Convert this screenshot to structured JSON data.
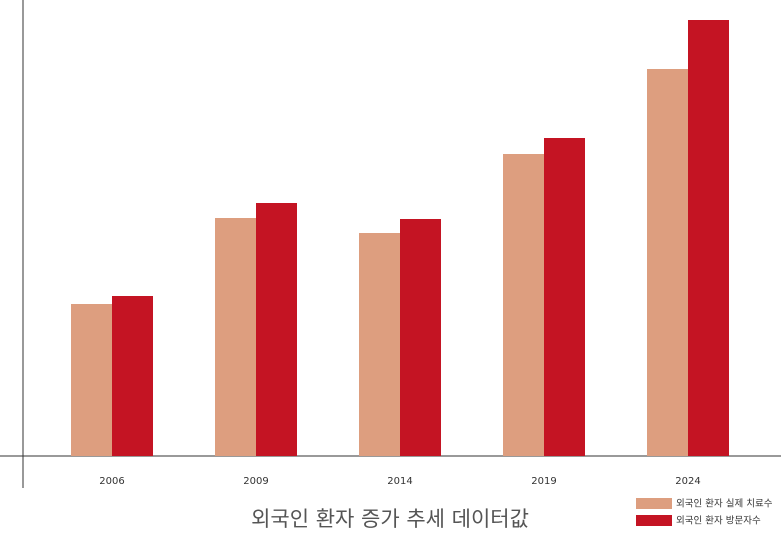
{
  "chart_data": {
    "type": "bar",
    "title": "외국인 환자 증가 추세 데이터값",
    "categories": [
      "2006",
      "2009",
      "2014",
      "2019",
      "2024"
    ],
    "series": [
      {
        "name": "외국인 환자 실제 치료수",
        "color": "#dd9e7f",
        "values": [
          152,
          238,
          223,
          302,
          387
        ]
      },
      {
        "name": "외국인 환자 방문자수",
        "color": "#c41423",
        "values": [
          160,
          253,
          237,
          318,
          436
        ]
      }
    ],
    "ylim": [
      0,
      440
    ]
  }
}
